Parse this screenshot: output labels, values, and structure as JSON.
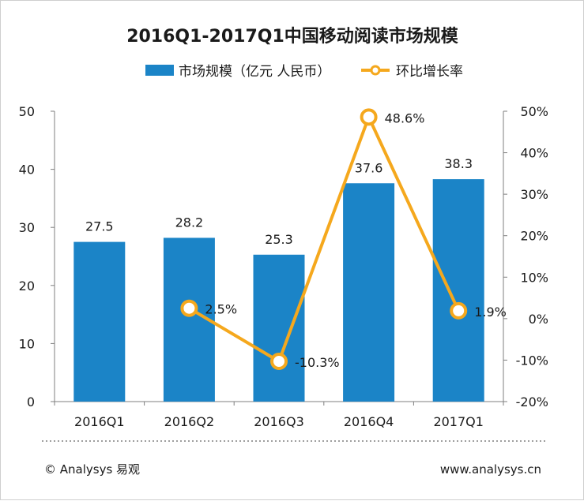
{
  "colors": {
    "bar": "#1b84c7",
    "line": "#f5a81d",
    "axis": "#7f7f7f",
    "text": "#1a1a1a",
    "dots": "#7f7f7f"
  },
  "footer": {
    "left": "© Analysys 易观",
    "right": "www.analysys.cn"
  },
  "chart_data": {
    "type": "bar",
    "title": "2016Q1-2017Q1中国移动阅读市场规模",
    "categories": [
      "2016Q1",
      "2016Q2",
      "2016Q3",
      "2016Q4",
      "2017Q1"
    ],
    "series": [
      {
        "name": "市场规模（亿元 人民币）",
        "type": "bar",
        "axis": "left",
        "values": [
          27.5,
          28.2,
          25.3,
          37.6,
          38.3
        ],
        "labels": [
          "27.5",
          "28.2",
          "25.3",
          "37.6",
          "38.3"
        ]
      },
      {
        "name": "环比增长率",
        "type": "line",
        "axis": "right",
        "values": [
          null,
          2.5,
          -10.3,
          48.6,
          1.9
        ],
        "labels": [
          "",
          "2.5%",
          "-10.3%",
          "48.6%",
          "1.9%"
        ]
      }
    ],
    "y_left": {
      "min": 0,
      "max": 50,
      "ticks": [
        "0",
        "10",
        "20",
        "30",
        "40",
        "50"
      ]
    },
    "y_right": {
      "min": -20,
      "max": 50,
      "ticks": [
        "-20%",
        "-10%",
        "0%",
        "10%",
        "20%",
        "30%",
        "40%",
        "50%"
      ]
    },
    "legend": "top-center",
    "grid": false
  }
}
